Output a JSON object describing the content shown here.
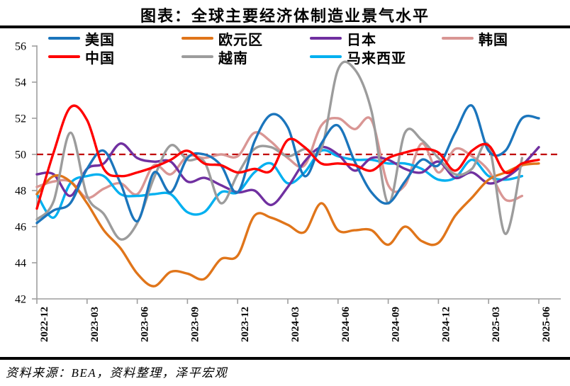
{
  "footer": {
    "source": "资料来源：BEA，资料整理，泽平宏观"
  },
  "chart_data": {
    "type": "line",
    "title": "图表：全球主要经济体制造业景气水平",
    "xlabel": "",
    "ylabel": "",
    "ylim": [
      42,
      56
    ],
    "y_ticks": [
      56,
      54,
      52,
      50,
      48,
      46,
      44,
      42
    ],
    "x_tick_labels": [
      "2022-12",
      "2023-03",
      "2023-06",
      "2023-09",
      "2023-12",
      "2024-03",
      "2024-06",
      "2024-09",
      "2024-12",
      "2025-03",
      "2025-06"
    ],
    "x_months": [
      "2022-12",
      "2023-01",
      "2023-02",
      "2023-03",
      "2023-04",
      "2023-05",
      "2023-06",
      "2023-07",
      "2023-08",
      "2023-09",
      "2023-10",
      "2023-11",
      "2023-12",
      "2024-01",
      "2024-02",
      "2024-03",
      "2024-04",
      "2024-05",
      "2024-06",
      "2024-07",
      "2024-08",
      "2024-09",
      "2024-10",
      "2024-11",
      "2024-12",
      "2025-01",
      "2025-02",
      "2025-03",
      "2025-04",
      "2025-05",
      "2025-06"
    ],
    "grid": false,
    "legend_position": "top",
    "axis_color": "#9e9e9e",
    "reference_line": {
      "value": 50,
      "color": "#C00000",
      "style": "dashed"
    },
    "series": [
      {
        "id": "us",
        "name": "美国",
        "color": "#1B75BC",
        "values": [
          46.2,
          46.9,
          47.3,
          49.2,
          50.2,
          48.4,
          46.3,
          49.0,
          47.9,
          49.8,
          50.0,
          49.4,
          47.9,
          50.7,
          52.2,
          51.5,
          48.8,
          50.6,
          51.6,
          49.6,
          47.9,
          47.3,
          48.5,
          49.7,
          49.4,
          51.2,
          52.7,
          50.2,
          50.2,
          52.0,
          52.0
        ]
      },
      {
        "id": "eurozone",
        "name": "欧元区",
        "color": "#E0751A",
        "values": [
          47.8,
          48.8,
          48.5,
          47.3,
          45.8,
          44.8,
          43.4,
          42.7,
          43.5,
          43.4,
          43.1,
          44.2,
          44.4,
          46.6,
          46.5,
          46.1,
          45.7,
          47.3,
          45.8,
          45.8,
          45.8,
          45.0,
          46.0,
          45.2,
          45.1,
          46.6,
          47.6,
          48.6,
          49.0,
          49.4,
          49.5
        ]
      },
      {
        "id": "japan",
        "name": "日本",
        "color": "#7030A0",
        "values": [
          48.9,
          48.9,
          47.7,
          49.2,
          49.5,
          50.6,
          49.8,
          49.6,
          49.6,
          48.5,
          48.7,
          48.3,
          47.9,
          48.0,
          47.2,
          48.2,
          49.6,
          50.4,
          50.0,
          49.1,
          49.8,
          49.7,
          49.2,
          49.0,
          49.6,
          48.7,
          49.0,
          48.4,
          48.7,
          49.4,
          50.4
        ]
      },
      {
        "id": "korea",
        "name": "韩国",
        "color": "#D99694",
        "values": [
          48.2,
          48.5,
          48.5,
          47.6,
          48.1,
          48.4,
          47.8,
          49.4,
          48.9,
          49.9,
          49.8,
          50.0,
          49.9,
          51.2,
          50.7,
          49.8,
          49.4,
          51.6,
          52.0,
          51.4,
          51.9,
          48.3,
          48.3,
          50.6,
          49.0,
          50.3,
          49.9,
          49.1,
          47.5,
          47.7
        ]
      },
      {
        "id": "china",
        "name": "中国",
        "color": "#FF0000",
        "values": [
          47.0,
          50.1,
          52.6,
          51.9,
          49.2,
          48.8,
          49.0,
          49.3,
          49.7,
          50.2,
          49.5,
          49.4,
          49.0,
          49.2,
          49.1,
          50.8,
          50.4,
          49.5,
          49.5,
          49.4,
          49.1,
          49.8,
          50.1,
          50.3,
          50.1,
          49.1,
          50.2,
          50.5,
          49.0,
          49.5,
          49.7
        ]
      },
      {
        "id": "vietnam",
        "name": "越南",
        "color": "#9C9C9C",
        "values": [
          46.4,
          47.4,
          51.2,
          47.7,
          46.7,
          45.3,
          46.2,
          48.7,
          50.5,
          49.7,
          49.6,
          47.3,
          48.9,
          50.3,
          50.4,
          49.9,
          50.3,
          50.3,
          54.7,
          54.7,
          52.4,
          47.3,
          51.2,
          50.8,
          49.8,
          48.9,
          49.2,
          50.5,
          45.6,
          49.8
        ]
      },
      {
        "id": "malaysia",
        "name": "马来西亚",
        "color": "#00B0F0",
        "values": [
          47.8,
          46.5,
          48.4,
          48.8,
          48.8,
          47.8,
          47.7,
          47.8,
          47.8,
          46.8,
          46.8,
          47.9,
          47.9,
          49.0,
          49.5,
          48.4,
          49.0,
          50.2,
          49.9,
          49.7,
          49.7,
          49.5,
          49.5,
          49.2,
          48.6,
          48.7,
          49.7,
          48.8,
          48.6,
          48.8
        ]
      }
    ]
  }
}
